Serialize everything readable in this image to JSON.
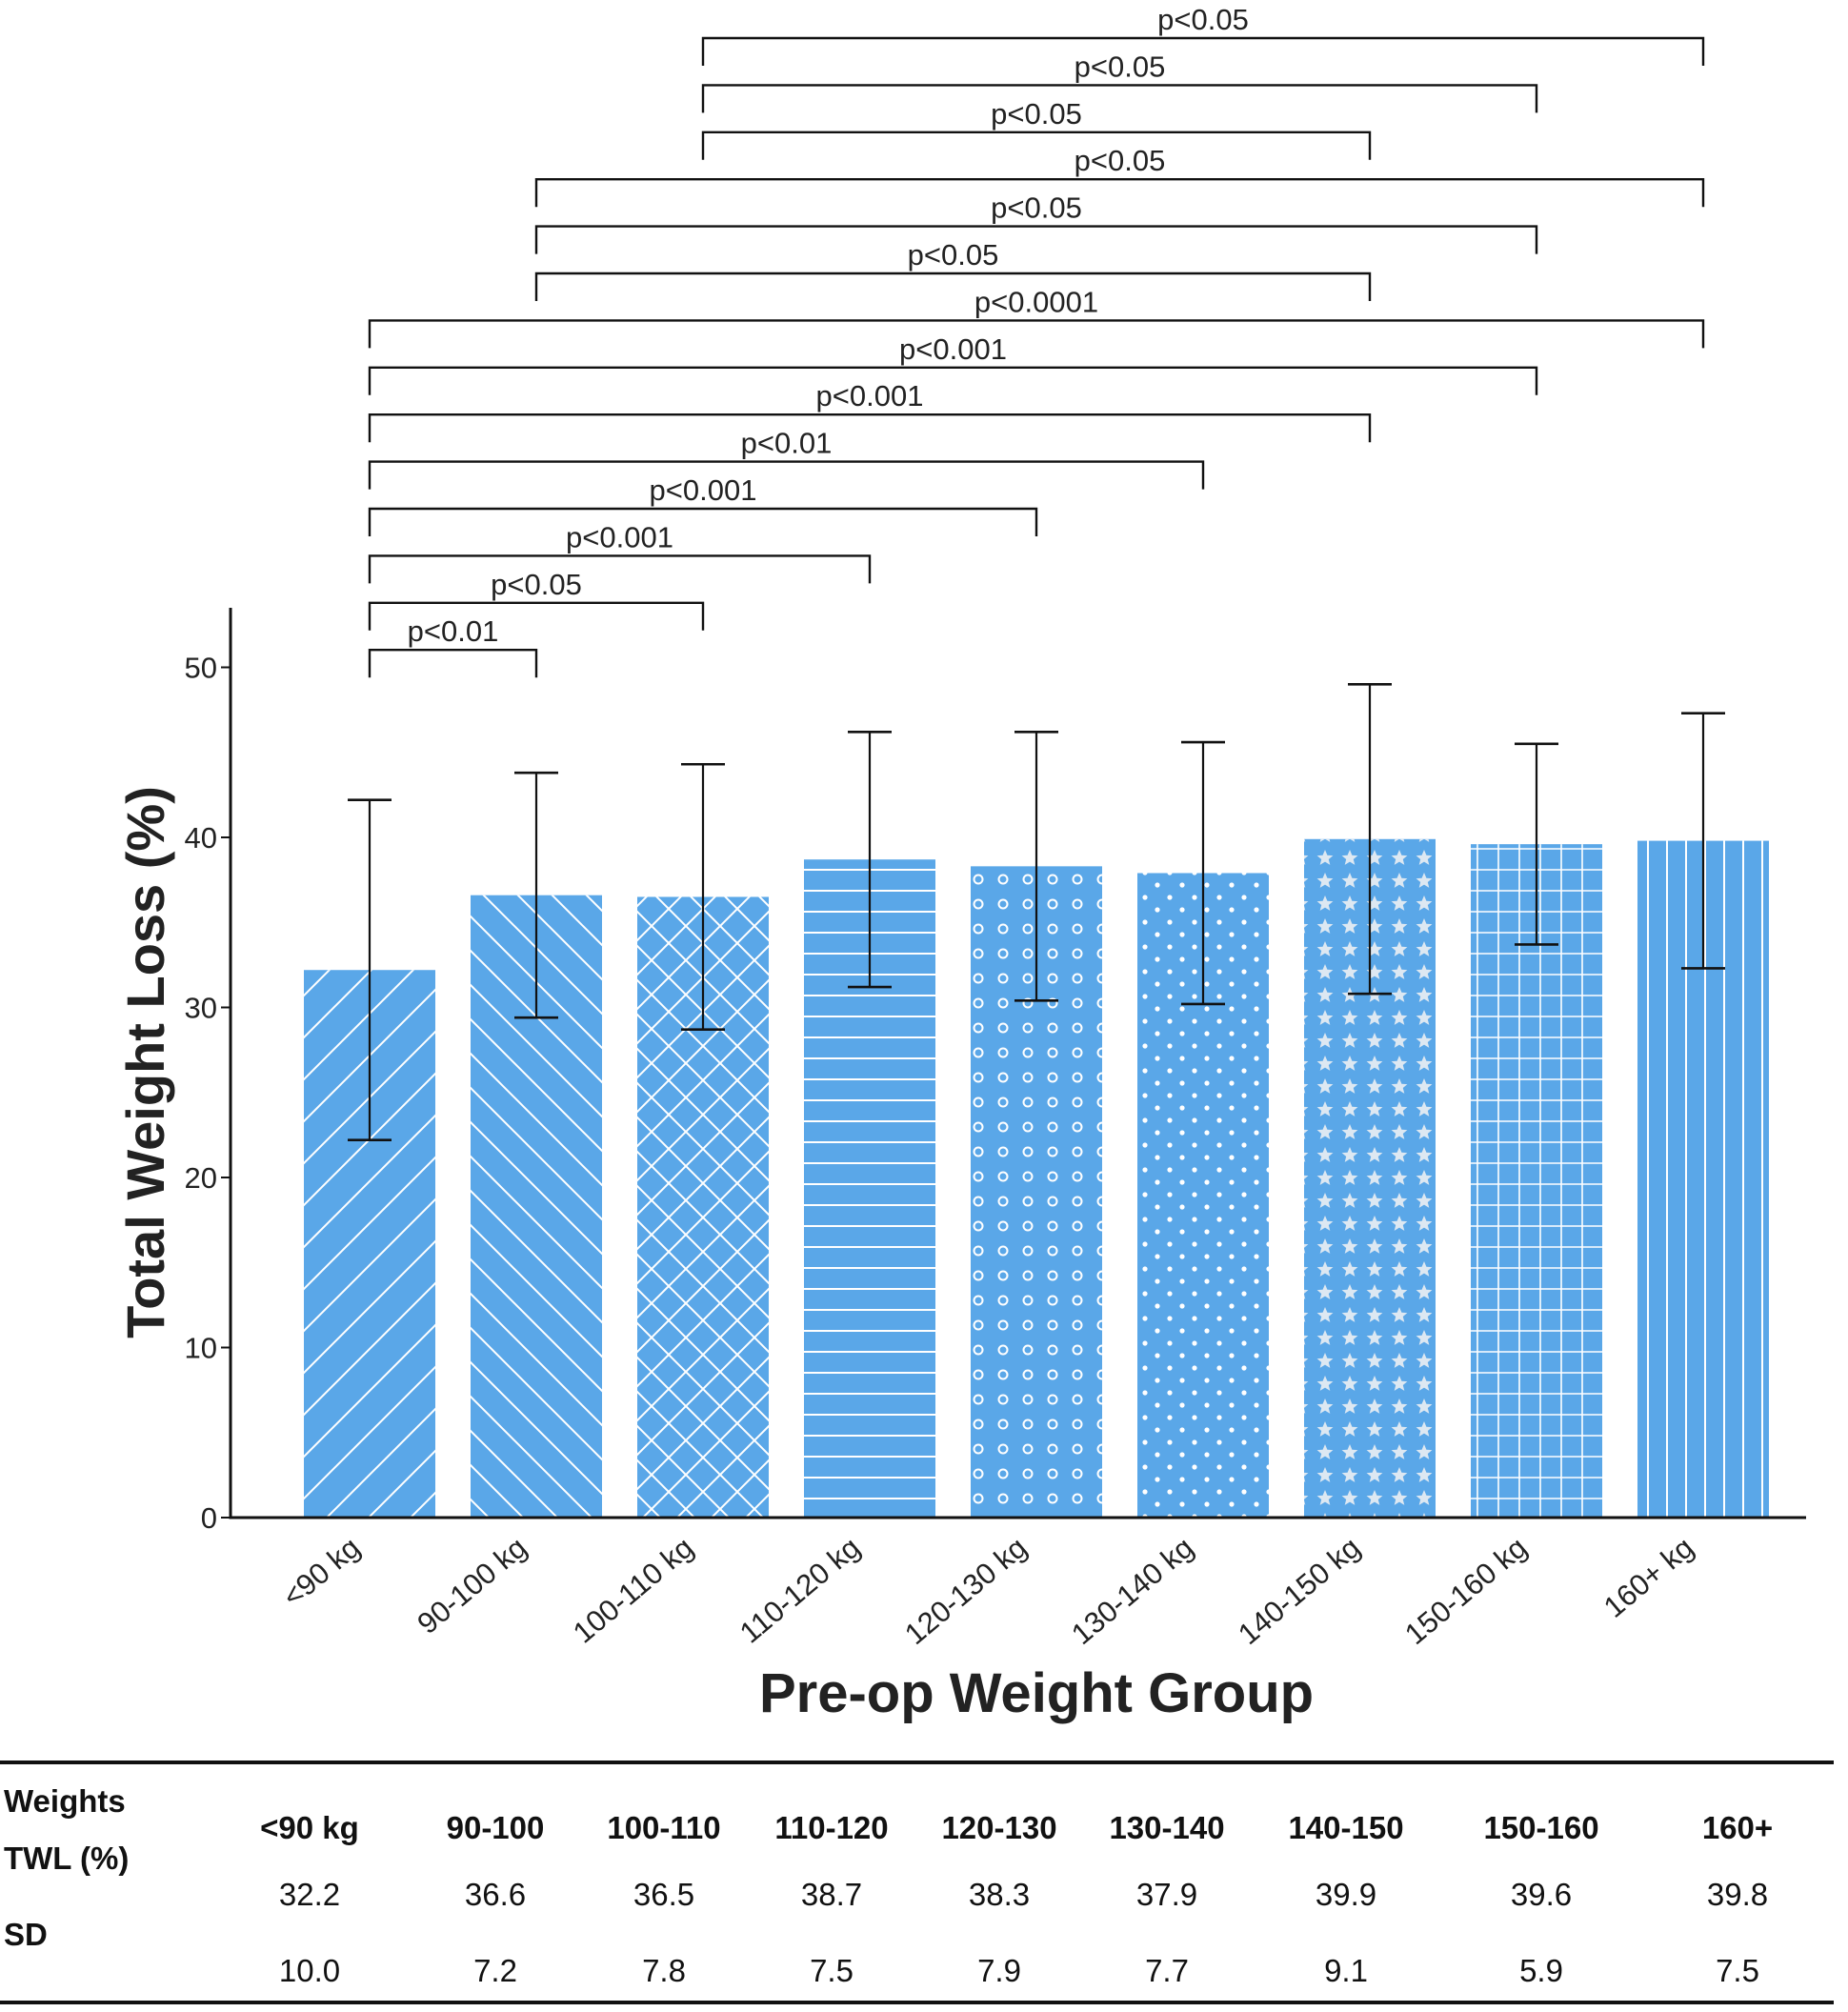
{
  "chart_data": {
    "type": "bar",
    "title": "",
    "xlabel": "Pre-op Weight Group",
    "ylabel": "Total Weight Loss (%)",
    "ylim": [
      0,
      53
    ],
    "yticks": [
      0,
      10,
      20,
      30,
      40,
      50
    ],
    "grid": false,
    "categories": [
      "<90 kg",
      "90-100 kg",
      "100-110 kg",
      "110-120 kg",
      "120-130 kg",
      "130-140 kg",
      "140-150 kg",
      "150-160 kg",
      "160+ kg"
    ],
    "values": [
      32.2,
      36.6,
      36.5,
      38.7,
      38.3,
      37.9,
      39.9,
      39.6,
      39.8
    ],
    "error_sd": [
      10.0,
      7.2,
      7.8,
      7.5,
      7.9,
      7.7,
      9.1,
      5.9,
      7.5
    ],
    "bar_color": "#5aa7e8",
    "bar_patterns": [
      "diagonal-up",
      "diagonal-down",
      "crosshatch",
      "horizontal-lines",
      "circles",
      "dots",
      "stars",
      "grid",
      "vertical-lines"
    ],
    "significance": [
      {
        "from": 0,
        "to": 1,
        "label": "p<0.01"
      },
      {
        "from": 0,
        "to": 2,
        "label": "p<0.05"
      },
      {
        "from": 0,
        "to": 3,
        "label": "p<0.001"
      },
      {
        "from": 0,
        "to": 4,
        "label": "p<0.001"
      },
      {
        "from": 0,
        "to": 5,
        "label": "p<0.01"
      },
      {
        "from": 0,
        "to": 6,
        "label": "p<0.001"
      },
      {
        "from": 0,
        "to": 7,
        "label": "p<0.001"
      },
      {
        "from": 0,
        "to": 8,
        "label": "p<0.0001"
      },
      {
        "from": 1,
        "to": 6,
        "label": "p<0.05"
      },
      {
        "from": 1,
        "to": 7,
        "label": "p<0.05"
      },
      {
        "from": 1,
        "to": 8,
        "label": "p<0.05"
      },
      {
        "from": 2,
        "to": 6,
        "label": "p<0.05"
      },
      {
        "from": 2,
        "to": 7,
        "label": "p<0.05"
      },
      {
        "from": 2,
        "to": 8,
        "label": "p<0.05"
      }
    ]
  },
  "table": {
    "row_labels": {
      "weights": "Weights",
      "twl": "TWL  (%)",
      "sd": "SD"
    },
    "headers": [
      "<90 kg",
      "90-100",
      "100-110",
      "110-120",
      "120-130",
      "130-140",
      "140-150",
      "150-160",
      "160+"
    ],
    "twl": [
      "32.2",
      "36.6",
      "36.5",
      "38.7",
      "38.3",
      "37.9",
      "39.9",
      "39.6",
      "39.8"
    ],
    "sd": [
      "10.0",
      "7.2",
      "7.8",
      "7.5",
      "7.9",
      "7.7",
      "9.1",
      "5.9",
      "7.5"
    ]
  }
}
